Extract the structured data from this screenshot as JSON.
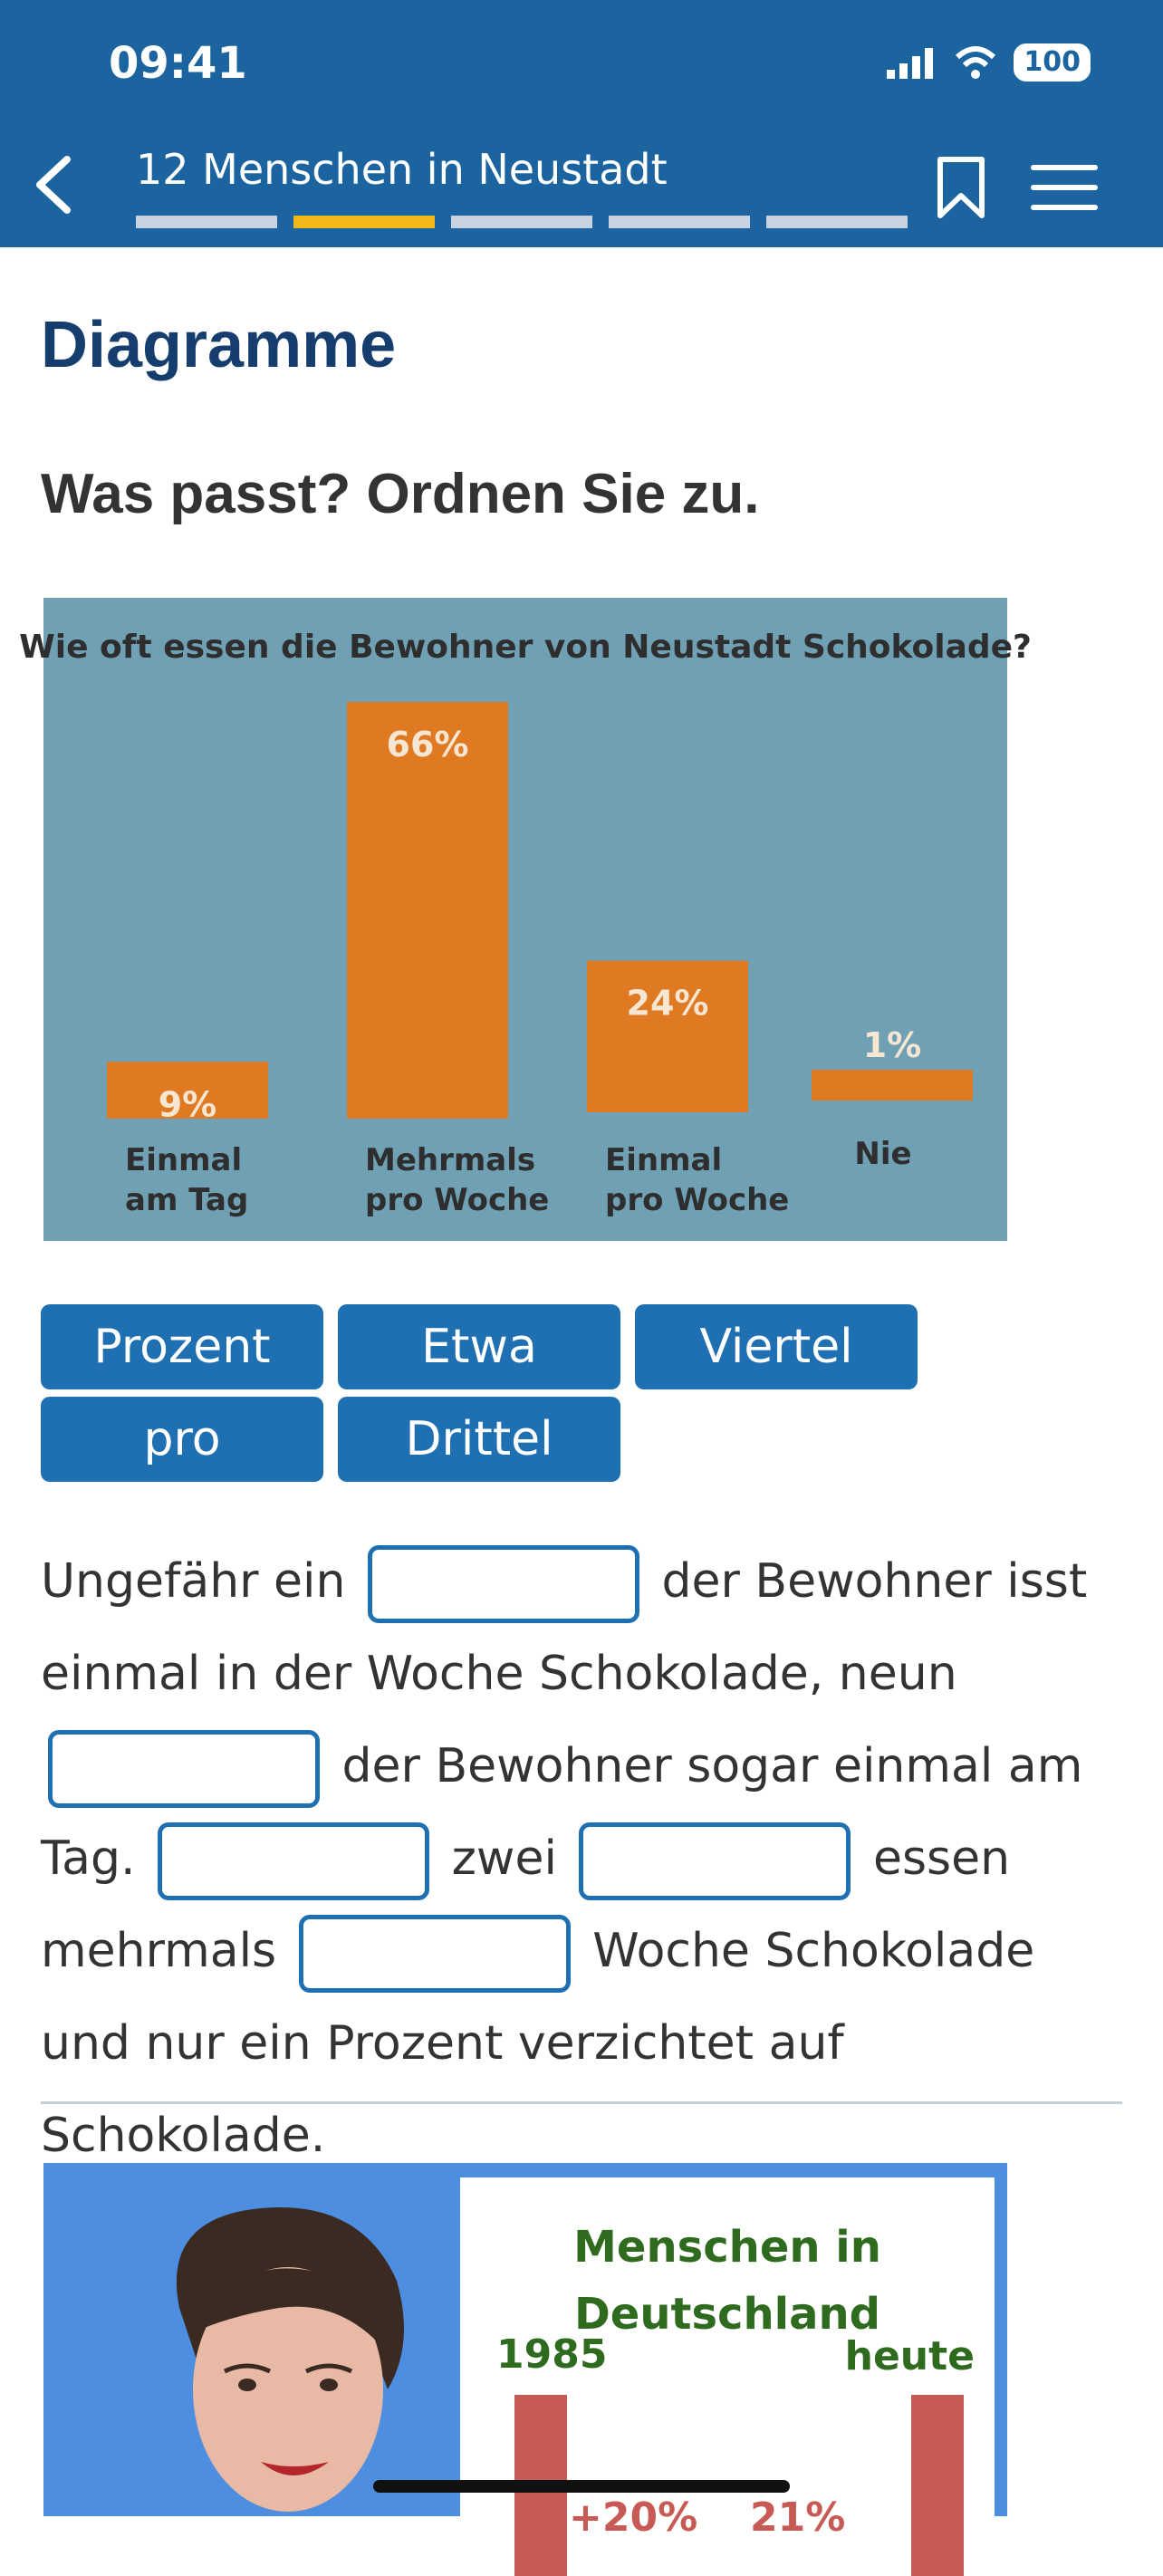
{
  "status_bar": {
    "time": "09:41",
    "battery": "100"
  },
  "nav": {
    "title": "12 Menschen in Neustadt",
    "progress_active_index": 1,
    "progress_count": 5
  },
  "content": {
    "heading": "Diagramme",
    "instruction": "Was passt? Ordnen Sie zu."
  },
  "chart_data": {
    "type": "bar",
    "title": "Wie oft essen die Bewohner von Neustadt Schokolade?",
    "categories": [
      "Einmal\nam Tag",
      "Mehrmals\npro Woche",
      "Einmal\npro Woche",
      "Nie"
    ],
    "category_lines": [
      [
        "Einmal",
        "am Tag"
      ],
      [
        "Mehrmals",
        "pro Woche"
      ],
      [
        "Einmal",
        "pro Woche"
      ],
      [
        "Nie"
      ]
    ],
    "values": [
      9,
      66,
      24,
      1
    ],
    "value_labels": [
      "9%",
      "66%",
      "24%",
      "1%"
    ],
    "colors": {
      "background": "#6fa0b4",
      "bar": "#e07a22",
      "value_label": "#f6e6d2",
      "text": "#2e2e2e"
    }
  },
  "word_chips": [
    {
      "label": "Prozent"
    },
    {
      "label": "Etwa"
    },
    {
      "label": "Viertel"
    },
    {
      "label": "pro"
    },
    {
      "label": "Drittel"
    }
  ],
  "cloze": {
    "p1": "Ungefähr ein",
    "p2": "der Bewohner isst einmal in der Woche Schokolade, neun",
    "p3": "der Bewohner sogar einmal am Tag.",
    "p4": "zwei",
    "p5": "essen mehrmals",
    "p6": "Woche Schokolade und nur ein Prozent verzichtet auf Schokolade."
  },
  "next_card": {
    "title": "Menschen in Deutschland",
    "year_left": "1985",
    "year_right": "heute",
    "pct_left": "+20%",
    "pct_right": "21%"
  },
  "colors": {
    "header": "#1b64a0",
    "accent": "#f2b818",
    "chip": "#1f70b2",
    "heading": "#153e6f"
  }
}
